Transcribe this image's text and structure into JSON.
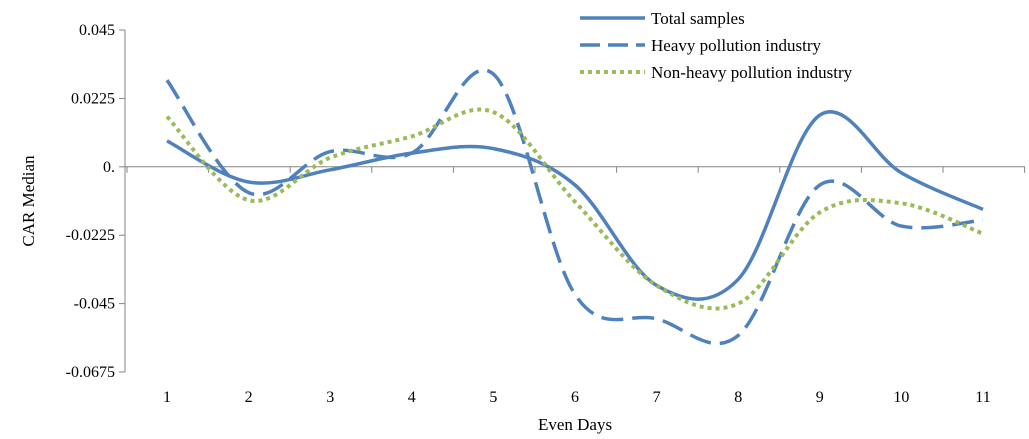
{
  "chart_data": {
    "type": "line",
    "title": "",
    "xlabel": "Even Days",
    "ylabel": "CAR Median",
    "x": [
      1,
      2,
      3,
      4,
      5,
      6,
      7,
      8,
      9,
      10,
      11
    ],
    "categories": [
      "1",
      "2",
      "3",
      "4",
      "5",
      "6",
      "7",
      "8",
      "9",
      "10",
      "11"
    ],
    "y_ticks": [
      0.045,
      0.0225,
      0.0,
      -0.0225,
      -0.045,
      -0.0675
    ],
    "y_tick_labels": [
      "0.045",
      "0.0225",
      "0.",
      "-0.0225",
      "-0.045",
      "-0.0675"
    ],
    "ylim": [
      -0.0675,
      0.045
    ],
    "grid": false,
    "legend_position": "top-right",
    "series": [
      {
        "name": "Total samples",
        "style": "solid",
        "color": "#4F81BD",
        "values": [
          0.0085,
          -0.005,
          -0.001,
          0.0045,
          0.006,
          -0.006,
          -0.039,
          -0.037,
          0.017,
          -0.002,
          -0.014
        ]
      },
      {
        "name": "Heavy pollution industry",
        "style": "dashed",
        "color": "#4F81BD",
        "values": [
          0.0285,
          -0.0085,
          0.005,
          0.0045,
          0.0305,
          -0.042,
          -0.05,
          -0.0555,
          -0.006,
          -0.0195,
          -0.0175
        ]
      },
      {
        "name": "Non-heavy pollution industry",
        "style": "dotted",
        "color": "#9BBB59",
        "values": [
          0.0165,
          -0.011,
          0.003,
          0.01,
          0.018,
          -0.0115,
          -0.039,
          -0.045,
          -0.015,
          -0.012,
          -0.022
        ]
      }
    ]
  }
}
